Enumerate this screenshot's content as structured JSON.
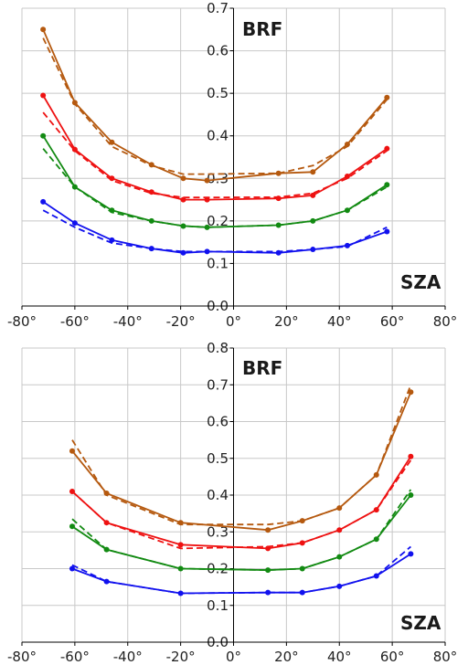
{
  "chart_data": [
    {
      "type": "line",
      "xlim": [
        -80,
        80
      ],
      "ylim": [
        0,
        0.7
      ],
      "xticks": [
        "-80°",
        "-60°",
        "-40°",
        "-20°",
        "0°",
        "20°",
        "40°",
        "60°",
        "80°"
      ],
      "yticks": [
        "0.0",
        "0.1",
        "0.2",
        "0.3",
        "0.4",
        "0.5",
        "0.6",
        "0.7"
      ],
      "corner_labels": {
        "y_axis": "BRF",
        "x_axis": "SZA"
      },
      "grid": true,
      "series": [
        {
          "color": "#b5590f",
          "style": "solid",
          "x": [
            -72,
            -60,
            -46,
            -31,
            -19,
            -10,
            17,
            30,
            43,
            58
          ],
          "y": [
            0.65,
            0.478,
            0.385,
            0.332,
            0.3,
            0.295,
            0.312,
            0.315,
            0.38,
            0.49
          ]
        },
        {
          "color": "#b5590f",
          "style": "dashed",
          "x": [
            -72,
            -60,
            -46,
            -31,
            -19,
            -10,
            17,
            30,
            43,
            58
          ],
          "y": [
            0.63,
            0.475,
            0.375,
            0.33,
            0.31,
            0.31,
            0.312,
            0.33,
            0.375,
            0.485
          ]
        },
        {
          "color": "#ee1111",
          "style": "solid",
          "x": [
            -72,
            -60,
            -46,
            -31,
            -19,
            -10,
            17,
            30,
            43,
            58
          ],
          "y": [
            0.495,
            0.368,
            0.3,
            0.268,
            0.25,
            0.25,
            0.253,
            0.26,
            0.305,
            0.37
          ]
        },
        {
          "color": "#ee1111",
          "style": "dashed",
          "x": [
            -72,
            -60,
            -46,
            -31,
            -19,
            -10,
            17,
            30,
            43,
            58
          ],
          "y": [
            0.455,
            0.365,
            0.295,
            0.265,
            0.255,
            0.255,
            0.256,
            0.265,
            0.3,
            0.365
          ]
        },
        {
          "color": "#128a12",
          "style": "solid",
          "x": [
            -72,
            -60,
            -46,
            -31,
            -19,
            -10,
            17,
            30,
            43,
            58
          ],
          "y": [
            0.4,
            0.28,
            0.225,
            0.2,
            0.188,
            0.185,
            0.19,
            0.2,
            0.225,
            0.285
          ]
        },
        {
          "color": "#128a12",
          "style": "dashed",
          "x": [
            -72,
            -60,
            -46,
            -31,
            -19,
            -10,
            17,
            30,
            43,
            58
          ],
          "y": [
            0.37,
            0.28,
            0.22,
            0.2,
            0.188,
            0.185,
            0.19,
            0.2,
            0.225,
            0.28
          ]
        },
        {
          "color": "#1111ee",
          "style": "solid",
          "x": [
            -72,
            -60,
            -46,
            -31,
            -19,
            -10,
            17,
            30,
            43,
            58
          ],
          "y": [
            0.245,
            0.195,
            0.155,
            0.135,
            0.125,
            0.128,
            0.125,
            0.133,
            0.142,
            0.175
          ]
        },
        {
          "color": "#1111ee",
          "style": "dashed",
          "x": [
            -72,
            -60,
            -46,
            -31,
            -19,
            -10,
            17,
            30,
            43,
            58
          ],
          "y": [
            0.225,
            0.185,
            0.148,
            0.135,
            0.128,
            0.128,
            0.128,
            0.133,
            0.14,
            0.185
          ]
        }
      ]
    },
    {
      "type": "line",
      "xlim": [
        -80,
        80
      ],
      "ylim": [
        0,
        0.8
      ],
      "xticks": [
        "-80°",
        "-60°",
        "-40°",
        "-20°",
        "0°",
        "20°",
        "40°",
        "60°",
        "80°"
      ],
      "yticks": [
        "0.0",
        "0.1",
        "0.2",
        "0.3",
        "0.4",
        "0.5",
        "0.6",
        "0.7",
        "0.8"
      ],
      "corner_labels": {
        "y_axis": "BRF",
        "x_axis": "SZA"
      },
      "grid": true,
      "series": [
        {
          "color": "#b5590f",
          "style": "solid",
          "x": [
            -61,
            -48,
            -20,
            13,
            26,
            40,
            54,
            67
          ],
          "y": [
            0.52,
            0.405,
            0.325,
            0.305,
            0.33,
            0.365,
            0.455,
            0.68
          ]
        },
        {
          "color": "#b5590f",
          "style": "dashed",
          "x": [
            -61,
            -48,
            -20,
            13,
            26,
            40,
            54,
            67
          ],
          "y": [
            0.55,
            0.4,
            0.32,
            0.32,
            0.33,
            0.365,
            0.455,
            0.7
          ]
        },
        {
          "color": "#ee1111",
          "style": "solid",
          "x": [
            -61,
            -48,
            -20,
            13,
            26,
            40,
            54,
            67
          ],
          "y": [
            0.41,
            0.325,
            0.265,
            0.255,
            0.27,
            0.305,
            0.36,
            0.505
          ]
        },
        {
          "color": "#ee1111",
          "style": "dashed",
          "x": [
            -61,
            -48,
            -20,
            13,
            26,
            40,
            54,
            67
          ],
          "y": [
            0.41,
            0.325,
            0.255,
            0.26,
            0.27,
            0.305,
            0.36,
            0.495
          ]
        },
        {
          "color": "#128a12",
          "style": "solid",
          "x": [
            -61,
            -48,
            -20,
            13,
            26,
            40,
            54,
            67
          ],
          "y": [
            0.315,
            0.252,
            0.2,
            0.196,
            0.2,
            0.232,
            0.28,
            0.4
          ]
        },
        {
          "color": "#128a12",
          "style": "dashed",
          "x": [
            -61,
            -48,
            -20,
            13,
            26,
            40,
            54,
            67
          ],
          "y": [
            0.335,
            0.252,
            0.2,
            0.196,
            0.2,
            0.232,
            0.28,
            0.415
          ]
        },
        {
          "color": "#1111ee",
          "style": "solid",
          "x": [
            -61,
            -48,
            -20,
            13,
            26,
            40,
            54,
            67
          ],
          "y": [
            0.2,
            0.165,
            0.133,
            0.135,
            0.135,
            0.152,
            0.18,
            0.24
          ]
        },
        {
          "color": "#1111ee",
          "style": "dashed",
          "x": [
            -61,
            -48,
            -20,
            13,
            26,
            40,
            54,
            67
          ],
          "y": [
            0.21,
            0.165,
            0.133,
            0.135,
            0.135,
            0.152,
            0.18,
            0.26
          ]
        }
      ]
    }
  ]
}
